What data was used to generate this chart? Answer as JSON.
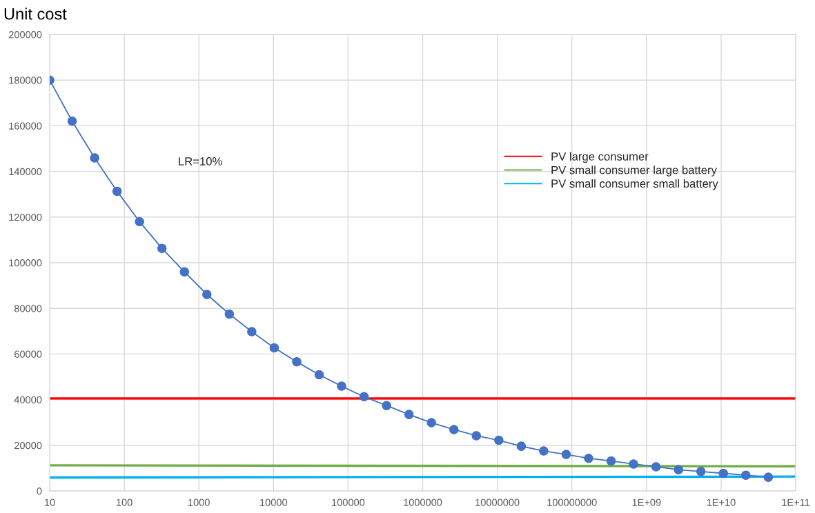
{
  "chart_data": {
    "type": "line",
    "ylabel": "Unit cost",
    "annotations": [
      "LR=10%"
    ],
    "xlim": [
      10,
      100000000000
    ],
    "xticks": [
      10,
      100,
      1000,
      10000,
      100000,
      1000000,
      10000000,
      100000000,
      {
        "value": 1000000000,
        "label": "1E+09"
      },
      {
        "value": 10000000000,
        "label": "1E+10"
      },
      {
        "value": 100000000000,
        "label": "1E+11"
      }
    ],
    "ylim": [
      0,
      200000
    ],
    "yticks": [
      0,
      20000,
      40000,
      60000,
      80000,
      100000,
      120000,
      140000,
      160000,
      180000,
      200000
    ],
    "log": "x",
    "grid": true,
    "legend": "top right",
    "series": [
      {
        "x": [
          10,
          20,
          40,
          80,
          160,
          320,
          640,
          1280,
          2560,
          5120,
          10240,
          20480,
          40960,
          81920,
          163840,
          327680,
          655360,
          1310720,
          2621440,
          5242880,
          10485760,
          20971520,
          41943040,
          83886080,
          167772160,
          335544320,
          671088640,
          1342177280,
          2684354560,
          5368709120,
          10737418240,
          21474836480,
          42949672960
        ],
        "values": [
          180000,
          162000,
          145900,
          131300,
          118000,
          106300,
          96000,
          86100,
          77500,
          69800,
          62700,
          56600,
          50900,
          45900,
          41300,
          37400,
          33500,
          29900,
          26900,
          24200,
          22200,
          19600,
          17500,
          16000,
          14300,
          13100,
          11800,
          10600,
          9300,
          8500,
          7700,
          6900,
          6000
        ],
        "color": "#4472c4",
        "marker": "circle"
      },
      {
        "name": "PV large consumer",
        "x": [
          10,
          100000000000
        ],
        "values": [
          40500,
          40500
        ],
        "color": "#ff0000",
        "marker": "none"
      },
      {
        "name": "PV small consumer large battery",
        "x": [
          10,
          100000000000
        ],
        "values": [
          11200,
          10800
        ],
        "color": "#70ad47",
        "marker": "none"
      },
      {
        "name": "PV small consumer small battery",
        "x": [
          10,
          100000000000
        ],
        "values": [
          5900,
          6300
        ],
        "color": "#00b0f0",
        "marker": "none"
      }
    ]
  }
}
